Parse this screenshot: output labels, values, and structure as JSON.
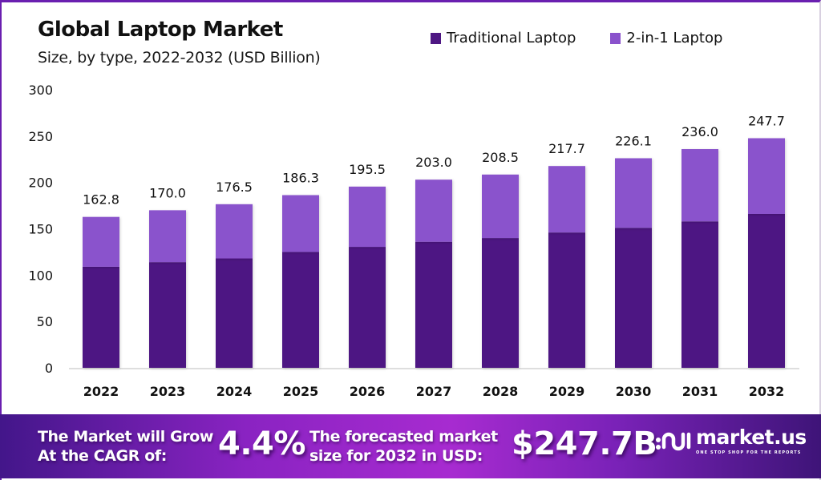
{
  "chart_data": {
    "type": "bar",
    "stacked": true,
    "title": "Global Laptop Market",
    "subtitle": "Size, by type, 2022-2032 (USD Billion)",
    "xlabel": "",
    "ylabel": "",
    "ylim": [
      0,
      300
    ],
    "yticks": [
      0,
      50,
      100,
      150,
      200,
      250,
      300
    ],
    "grid": false,
    "legend_position": "top-right",
    "categories": [
      "2022",
      "2023",
      "2024",
      "2025",
      "2026",
      "2027",
      "2028",
      "2029",
      "2030",
      "2031",
      "2032"
    ],
    "series": [
      {
        "name": "Traditional Laptop",
        "color": "#4e1783",
        "values": [
          109.0,
          114.0,
          118.0,
          125.0,
          130.5,
          136.0,
          140.0,
          146.0,
          151.0,
          158.0,
          166.0
        ]
      },
      {
        "name": "2-in-1 Laptop",
        "color": "#8a52cc",
        "values": [
          53.8,
          56.0,
          58.5,
          61.3,
          65.0,
          67.0,
          68.5,
          71.7,
          75.1,
          78.0,
          81.7
        ]
      }
    ],
    "totals": [
      162.8,
      170.0,
      176.5,
      186.3,
      195.5,
      203.0,
      208.5,
      217.7,
      226.1,
      236.0,
      247.7
    ],
    "total_labels": [
      "162.8",
      "170.0",
      "176.5",
      "186.3",
      "195.5",
      "203.0",
      "208.5",
      "217.7",
      "226.1",
      "236.0",
      "247.7"
    ]
  },
  "banner": {
    "cagr_label_line1": "The Market will Grow",
    "cagr_label_line2": "At the CAGR of:",
    "cagr_value": "4.4%",
    "forecast_label_line1": "The forecasted market",
    "forecast_label_line2": "size for 2032 in USD:",
    "forecast_value": "$247.7B",
    "logo_icon": "market-us-logo-icon",
    "logo_name": "market.us",
    "logo_tagline": "ONE STOP SHOP FOR THE REPORTS"
  },
  "colors": {
    "frame_accent": "#6a1fb0",
    "traditional": "#4e1783",
    "two_in_one": "#8a52cc"
  }
}
